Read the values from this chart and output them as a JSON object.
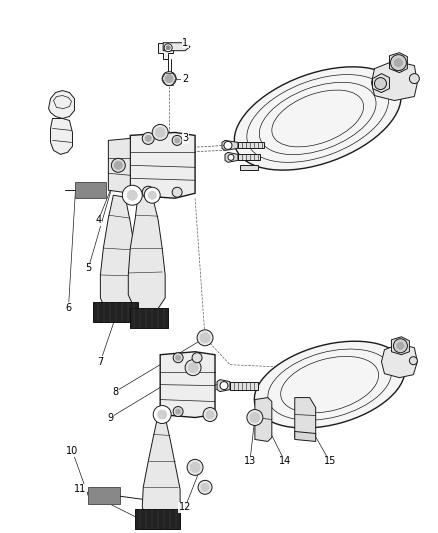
{
  "bg_color": "#ffffff",
  "line_color": "#1a1a1a",
  "label_color": "#000000",
  "fig_width": 4.38,
  "fig_height": 5.33,
  "dpi": 100
}
